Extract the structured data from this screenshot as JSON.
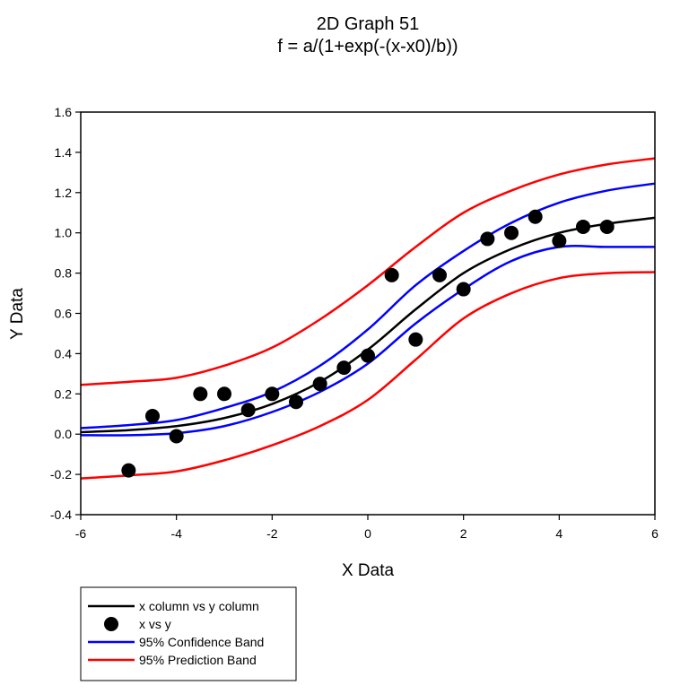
{
  "chart_data": {
    "type": "scatter",
    "title": "2D Graph 51",
    "subtitle": "f = a/(1+exp(-(x-x0)/b))",
    "xlabel": "X Data",
    "ylabel": "Y Data",
    "xlim": [
      -6,
      6
    ],
    "ylim": [
      -0.4,
      1.6
    ],
    "xticks": [
      -6,
      -4,
      -2,
      0,
      2,
      4,
      6
    ],
    "yticks": [
      -0.4,
      -0.2,
      0.0,
      0.2,
      0.4,
      0.6,
      0.8,
      1.0,
      1.2,
      1.4,
      1.6
    ],
    "xtick_labels": [
      "-6",
      "-4",
      "-2",
      "0",
      "2",
      "4",
      "6"
    ],
    "ytick_labels": [
      "-0.4",
      "-0.2",
      "0.0",
      "0.2",
      "0.4",
      "0.6",
      "0.8",
      "1.0",
      "1.2",
      "1.4",
      "1.6"
    ],
    "grid": false,
    "legend_placement": "bottom-left, below plot",
    "curve_x": [
      -6,
      -5,
      -4,
      -3,
      -2,
      -1,
      0,
      1,
      2,
      3,
      4,
      5,
      6
    ],
    "series": [
      {
        "name": "x column vs y column",
        "kind": "line",
        "color": "#000000",
        "y": [
          0.01,
          0.02,
          0.04,
          0.08,
          0.15,
          0.26,
          0.42,
          0.62,
          0.8,
          0.92,
          1.0,
          1.045,
          1.075
        ]
      },
      {
        "name": "x vs y",
        "kind": "scatter",
        "color": "#000000",
        "x": [
          -5,
          -4.5,
          -4,
          -3.5,
          -3,
          -2.5,
          -2,
          -1.5,
          -1,
          -0.5,
          0,
          0.5,
          1,
          1.5,
          2,
          2.5,
          3,
          3.5,
          4,
          4.5,
          5
        ],
        "y": [
          -0.18,
          0.09,
          -0.01,
          0.2,
          0.2,
          0.12,
          0.2,
          0.16,
          0.25,
          0.33,
          0.39,
          0.79,
          0.47,
          0.79,
          0.72,
          0.97,
          1.0,
          1.08,
          0.96,
          1.03,
          1.03
        ]
      },
      {
        "name": "95% Confidence Band",
        "kind": "band",
        "color": "#0000ff",
        "upper": [
          0.03,
          0.045,
          0.07,
          0.13,
          0.21,
          0.34,
          0.52,
          0.74,
          0.91,
          1.05,
          1.15,
          1.21,
          1.245
        ],
        "lower": [
          -0.005,
          -0.005,
          0.005,
          0.04,
          0.11,
          0.21,
          0.35,
          0.55,
          0.72,
          0.86,
          0.93,
          0.93,
          0.93
        ]
      },
      {
        "name": "95% Prediction Band",
        "kind": "band",
        "color": "#ff0000",
        "upper": [
          0.245,
          0.26,
          0.28,
          0.34,
          0.43,
          0.57,
          0.74,
          0.93,
          1.1,
          1.21,
          1.29,
          1.34,
          1.37
        ],
        "lower": [
          -0.22,
          -0.205,
          -0.185,
          -0.13,
          -0.055,
          0.04,
          0.17,
          0.37,
          0.575,
          0.7,
          0.775,
          0.8,
          0.805
        ]
      }
    ]
  }
}
